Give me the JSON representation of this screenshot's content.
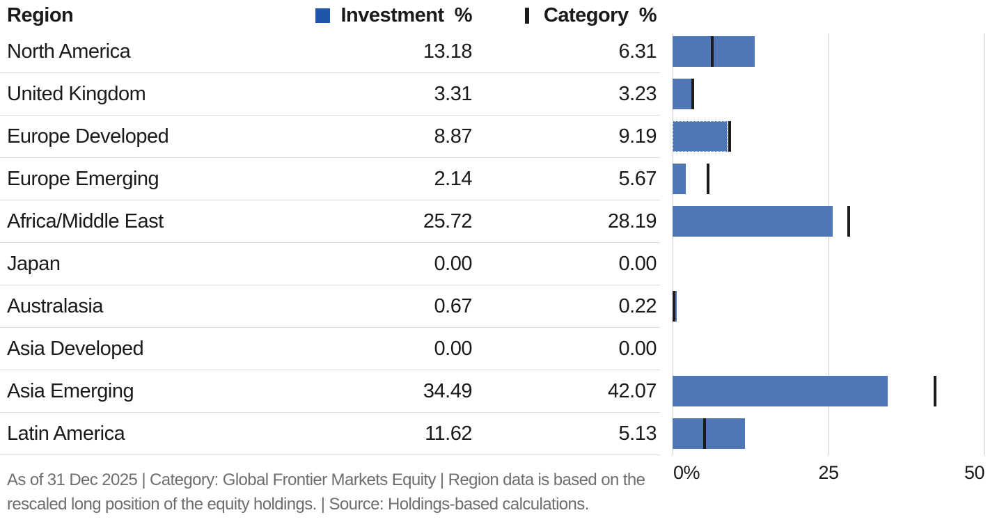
{
  "header": {
    "region_label": "Region",
    "investment_label": "Investment  %",
    "category_label": "Category  %"
  },
  "rows": [
    {
      "region": "North America",
      "investment": "13.18",
      "category": "6.31"
    },
    {
      "region": "United Kingdom",
      "investment": "3.31",
      "category": "3.23"
    },
    {
      "region": "Europe Developed",
      "investment": "8.87",
      "category": "9.19"
    },
    {
      "region": "Europe Emerging",
      "investment": "2.14",
      "category": "5.67"
    },
    {
      "region": "Africa/Middle East",
      "investment": "25.72",
      "category": "28.19"
    },
    {
      "region": "Japan",
      "investment": "0.00",
      "category": "0.00"
    },
    {
      "region": "Australasia",
      "investment": "0.67",
      "category": "0.22"
    },
    {
      "region": "Asia Developed",
      "investment": "0.00",
      "category": "0.00"
    },
    {
      "region": "Asia Emerging",
      "investment": "34.49",
      "category": "42.07"
    },
    {
      "region": "Latin America",
      "investment": "11.62",
      "category": "5.13"
    }
  ],
  "chart_data": {
    "type": "bar",
    "orientation": "horizontal",
    "categories": [
      "North America",
      "United Kingdom",
      "Europe Developed",
      "Europe Emerging",
      "Africa/Middle East",
      "Japan",
      "Australasia",
      "Asia Developed",
      "Asia Emerging",
      "Latin America"
    ],
    "series": [
      {
        "name": "Investment %",
        "style": "bar",
        "color": "#4F76B6",
        "values": [
          13.18,
          3.31,
          8.87,
          2.14,
          25.72,
          0.0,
          0.67,
          0.0,
          34.49,
          11.62
        ]
      },
      {
        "name": "Category %",
        "style": "tick-marker",
        "color": "#1C1C1C",
        "values": [
          6.31,
          3.23,
          9.19,
          5.67,
          28.19,
          0.0,
          0.22,
          0.0,
          42.07,
          5.13
        ]
      }
    ],
    "xlim": [
      0,
      50
    ],
    "x_ticks": [
      "0%",
      "25",
      "50"
    ],
    "gridline_values": [
      0,
      25,
      50
    ],
    "grid": "vertical-only",
    "legend_position": "top",
    "legend_swatch_color": "#1F57A8",
    "highlighted_row": 2,
    "title": "",
    "xlabel": "",
    "ylabel": ""
  },
  "footer": {
    "line1": "As of 31 Dec 2025 | Category: Global Frontier Markets Equity | Region data is based on the",
    "line2": "rescaled long position of the equity holdings. | Source: Holdings-based calculations."
  }
}
